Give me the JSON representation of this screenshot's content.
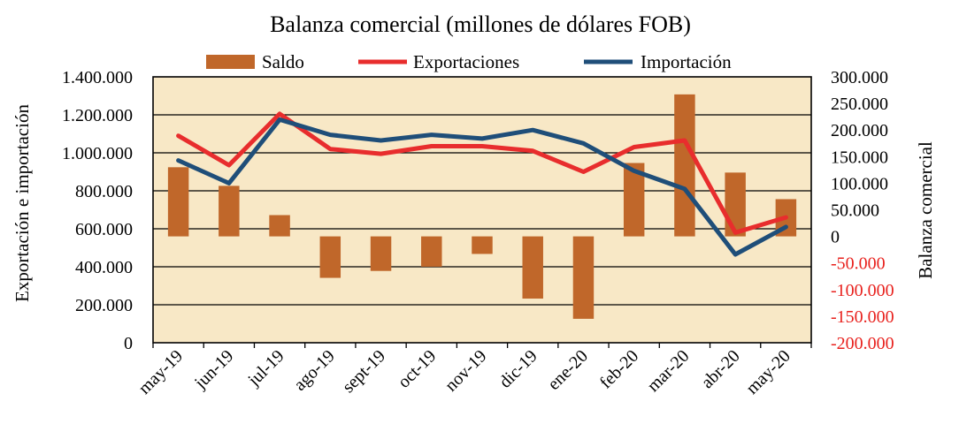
{
  "chart_data": {
    "type": "bar+line",
    "title": "Balanza comercial (millones de dólares FOB)",
    "categories": [
      "may-19",
      "jun-19",
      "jul-19",
      "ago-19",
      "sept-19",
      "oct-19",
      "nov-19",
      "dic-19",
      "ene-20",
      "feb-20",
      "mar-20",
      "abr-20",
      "may-20"
    ],
    "series": [
      {
        "name": "Saldo",
        "kind": "bar",
        "axis": "right",
        "color": "#c0672a",
        "values": [
          130,
          95,
          40,
          -78,
          -65,
          -57,
          -33,
          -117,
          -155,
          138,
          267,
          120,
          70
        ]
      },
      {
        "name": "Exportaciones",
        "kind": "line",
        "axis": "left",
        "color": "#e82d2d",
        "values": [
          1090000,
          935000,
          1205000,
          1020000,
          995000,
          1035000,
          1035000,
          1010000,
          900000,
          1030000,
          1065000,
          580000,
          660000
        ]
      },
      {
        "name": "Importación",
        "kind": "line",
        "axis": "left",
        "color": "#1f4e79",
        "values": [
          960000,
          840000,
          1175000,
          1095000,
          1065000,
          1095000,
          1075000,
          1120000,
          1050000,
          905000,
          810000,
          465000,
          610000
        ]
      }
    ],
    "left_axis": {
      "label": "Exportación e  importación",
      "ylim": [
        0,
        1400000
      ],
      "ticks": [
        "0",
        "200.000",
        "400.000",
        "600.000",
        "800.000",
        "1.000.000",
        "1.200.000",
        "1.400.000"
      ]
    },
    "right_axis": {
      "label": "Balanza comercial",
      "ylim": [
        -200,
        300
      ],
      "ticks": [
        "-200.000",
        "-150.000",
        "-100.000",
        "-50.000",
        "0",
        "50.000",
        "100.000",
        "150.000",
        "200.000",
        "250.000",
        "300.000"
      ],
      "negative_tick_color": "#e8211d"
    },
    "legend_position": "top",
    "grid": true,
    "plot_background": "#f8e8c6"
  }
}
